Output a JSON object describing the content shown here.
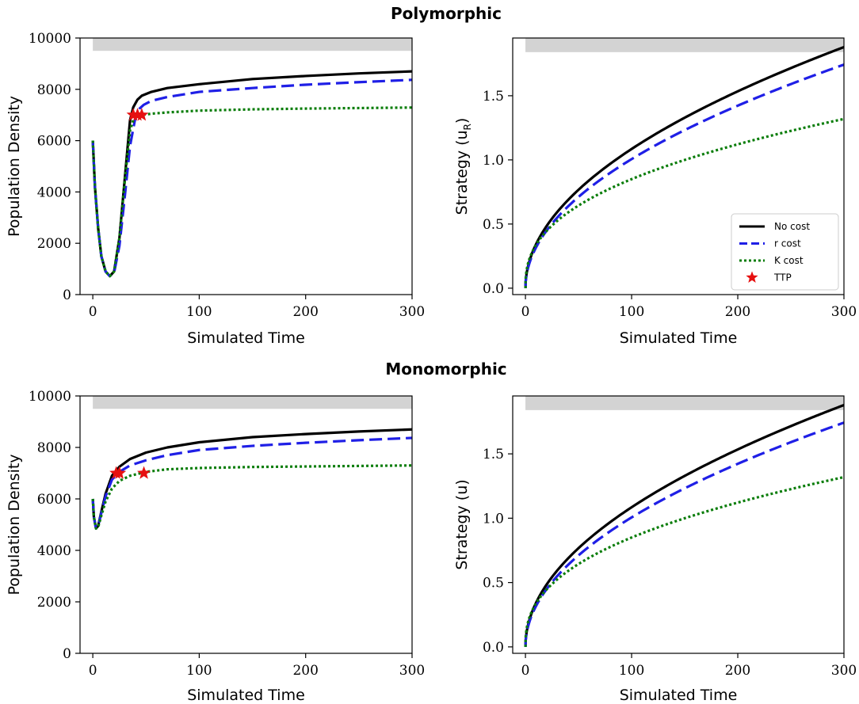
{
  "figure": {
    "titles": [
      "Polymorphic",
      "Monomorphic"
    ]
  },
  "chart_data": [
    {
      "id": "poly-density",
      "section": "Polymorphic",
      "type": "line",
      "xlabel": "Simulated Time",
      "ylabel": "Population Density",
      "xlim": [
        -12,
        300
      ],
      "ylim": [
        0,
        10000
      ],
      "xticks": [
        0,
        100,
        200,
        300
      ],
      "yticks": [
        0,
        2000,
        4000,
        6000,
        8000,
        10000
      ],
      "ytick_labels": [
        "0",
        "2000",
        "4000",
        "6000",
        "8000",
        "10000"
      ],
      "band": {
        "x": [
          0,
          300
        ],
        "y": [
          9500,
          10000
        ],
        "color": "#d3d3d3"
      },
      "series": [
        {
          "name": "No cost",
          "color": "#000000",
          "style": "solid",
          "x": [
            0,
            2,
            5,
            8,
            12,
            16,
            20,
            25,
            30,
            35,
            38,
            42,
            46,
            55,
            70,
            100,
            150,
            200,
            250,
            300
          ],
          "y": [
            6000,
            4200,
            2600,
            1500,
            900,
            720,
            900,
            2200,
            4500,
            6800,
            7300,
            7600,
            7750,
            7900,
            8050,
            8200,
            8400,
            8520,
            8620,
            8700
          ]
        },
        {
          "name": "r cost",
          "color": "#1f1fe6",
          "style": "dashed",
          "x": [
            0,
            2,
            5,
            8,
            12,
            16,
            20,
            25,
            30,
            35,
            40,
            44,
            48,
            55,
            70,
            100,
            150,
            200,
            250,
            300
          ],
          "y": [
            6000,
            4200,
            2600,
            1500,
            900,
            720,
            850,
            1900,
            3800,
            5800,
            6900,
            7250,
            7400,
            7550,
            7700,
            7900,
            8050,
            8180,
            8280,
            8370
          ]
        },
        {
          "name": "K cost",
          "color": "#0a7d0a",
          "style": "dotted",
          "x": [
            0,
            2,
            5,
            8,
            12,
            16,
            20,
            25,
            30,
            35,
            38,
            42,
            46,
            55,
            70,
            100,
            150,
            200,
            250,
            300
          ],
          "y": [
            6000,
            4200,
            2600,
            1500,
            900,
            720,
            900,
            2200,
            4400,
            6400,
            6800,
            6950,
            7000,
            7050,
            7100,
            7170,
            7220,
            7250,
            7270,
            7290
          ]
        }
      ],
      "ttp": {
        "name": "TTP",
        "color": "#e61010",
        "x": [
          38,
          42,
          46
        ],
        "y": [
          7000,
          7000,
          7000
        ]
      }
    },
    {
      "id": "poly-strategy",
      "section": "Polymorphic",
      "type": "line",
      "xlabel": "Simulated Time",
      "ylabel": "Strategy (u",
      "ylabel_sub": "R",
      "ylabel_tail": ")",
      "xlim": [
        -12,
        300
      ],
      "ylim": [
        -0.05,
        1.95
      ],
      "xticks": [
        0,
        100,
        200,
        300
      ],
      "yticks": [
        0.0,
        0.5,
        1.0,
        1.5
      ],
      "ytick_labels": [
        "0.0",
        "0.5",
        "1.0",
        "1.5"
      ],
      "band": {
        "x": [
          0,
          300
        ],
        "y": [
          1.84,
          1.95
        ],
        "color": "#d3d3d3"
      },
      "series": [
        {
          "name": "No cost",
          "color": "#000000",
          "style": "solid",
          "power": 0.5,
          "coef": 0.1085
        },
        {
          "name": "r cost",
          "color": "#1f1fe6",
          "style": "dashed",
          "power": 0.5,
          "coef": 0.1006
        },
        {
          "name": "K cost",
          "color": "#0a7d0a",
          "style": "dotted",
          "power": 0.4,
          "coef": 0.1347
        }
      ],
      "legend": {
        "position": "lower-right",
        "entries": [
          "No cost",
          "r cost",
          "K cost",
          "TTP"
        ]
      }
    },
    {
      "id": "mono-density",
      "section": "Monomorphic",
      "type": "line",
      "xlabel": "Simulated Time",
      "ylabel": "Population Density",
      "xlim": [
        -12,
        300
      ],
      "ylim": [
        0,
        10000
      ],
      "xticks": [
        0,
        100,
        200,
        300
      ],
      "yticks": [
        0,
        2000,
        4000,
        6000,
        8000,
        10000
      ],
      "ytick_labels": [
        "0",
        "2000",
        "4000",
        "6000",
        "8000",
        "10000"
      ],
      "band": {
        "x": [
          0,
          300
        ],
        "y": [
          9500,
          10000
        ],
        "color": "#d3d3d3"
      },
      "series": [
        {
          "name": "No cost",
          "color": "#000000",
          "style": "solid",
          "x": [
            0,
            1,
            3,
            5,
            8,
            12,
            18,
            25,
            35,
            50,
            70,
            100,
            150,
            200,
            250,
            300
          ],
          "y": [
            6000,
            5300,
            4850,
            4950,
            5500,
            6200,
            6900,
            7250,
            7550,
            7800,
            8000,
            8200,
            8400,
            8520,
            8620,
            8700
          ]
        },
        {
          "name": "r cost",
          "color": "#1f1fe6",
          "style": "dashed",
          "x": [
            0,
            1,
            3,
            5,
            8,
            12,
            18,
            25,
            35,
            50,
            70,
            100,
            150,
            200,
            250,
            300
          ],
          "y": [
            6000,
            5300,
            4850,
            4950,
            5450,
            6100,
            6750,
            7050,
            7300,
            7500,
            7700,
            7900,
            8060,
            8180,
            8280,
            8370
          ]
        },
        {
          "name": "K cost",
          "color": "#0a7d0a",
          "style": "dotted",
          "x": [
            0,
            1,
            3,
            5,
            8,
            12,
            18,
            25,
            35,
            50,
            70,
            100,
            150,
            200,
            250,
            300
          ],
          "y": [
            6000,
            5300,
            4850,
            4900,
            5350,
            5900,
            6400,
            6700,
            6900,
            7050,
            7150,
            7200,
            7240,
            7260,
            7280,
            7300
          ]
        }
      ],
      "ttp": {
        "name": "TTP",
        "color": "#e61010",
        "x": [
          22,
          25,
          48
        ],
        "y": [
          7000,
          7000,
          7000
        ]
      }
    },
    {
      "id": "mono-strategy",
      "section": "Monomorphic",
      "type": "line",
      "xlabel": "Simulated Time",
      "ylabel": "Strategy (u)",
      "ylabel_sub": "",
      "ylabel_tail": "",
      "xlim": [
        -12,
        300
      ],
      "ylim": [
        -0.05,
        1.95
      ],
      "xticks": [
        0,
        100,
        200,
        300
      ],
      "yticks": [
        0.0,
        0.5,
        1.0,
        1.5
      ],
      "ytick_labels": [
        "0.0",
        "0.5",
        "1.0",
        "1.5"
      ],
      "band": {
        "x": [
          0,
          300
        ],
        "y": [
          1.84,
          1.95
        ],
        "color": "#d3d3d3"
      },
      "series": [
        {
          "name": "No cost",
          "color": "#000000",
          "style": "solid",
          "power": 0.5,
          "coef": 0.1085
        },
        {
          "name": "r cost",
          "color": "#1f1fe6",
          "style": "dashed",
          "power": 0.5,
          "coef": 0.1006
        },
        {
          "name": "K cost",
          "color": "#0a7d0a",
          "style": "dotted",
          "power": 0.4,
          "coef": 0.1347
        }
      ]
    }
  ]
}
